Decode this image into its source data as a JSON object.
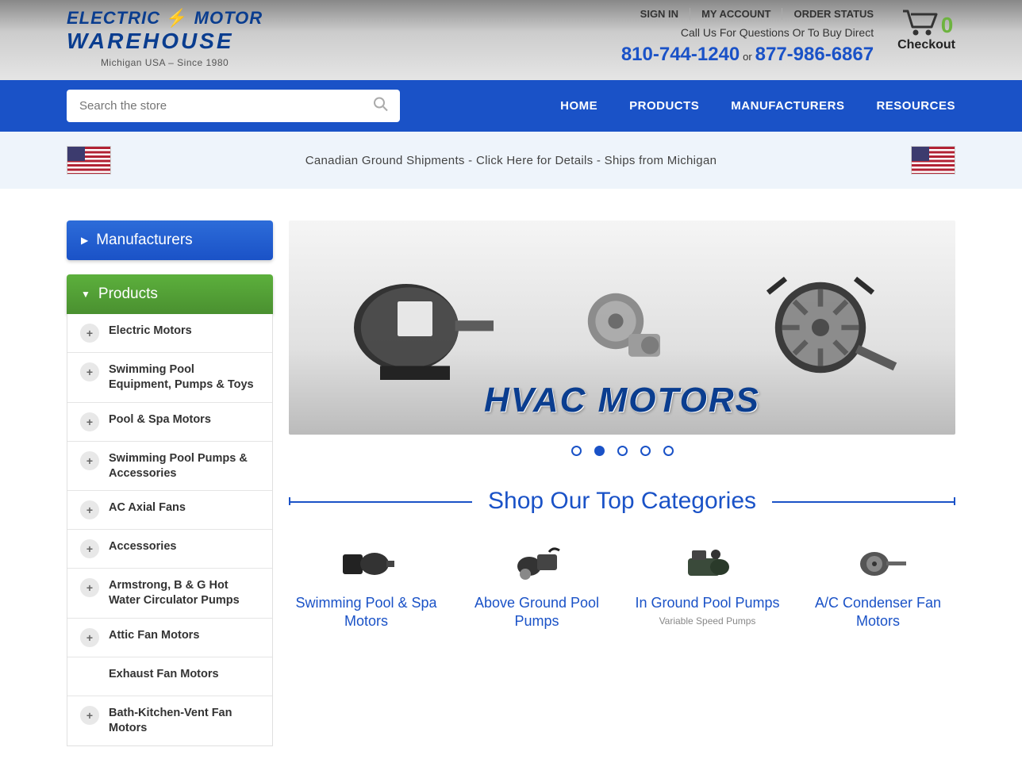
{
  "header": {
    "logo_line1_a": "ELECTRIC",
    "logo_line1_b": "MOTOR",
    "logo_line2": "WAREHOUSE",
    "tagline": "Michigan USA – Since 1980",
    "links": [
      "SIGN IN",
      "MY ACCOUNT",
      "ORDER STATUS"
    ],
    "call_text": "Call Us For Questions Or To Buy Direct",
    "phone1": "810-744-1240",
    "phone_or": "or",
    "phone2": "877-986-6867",
    "cart_count": "0",
    "cart_label": "Checkout"
  },
  "nav": {
    "search_placeholder": "Search the store",
    "links": [
      "HOME",
      "PRODUCTS",
      "MANUFACTURERS",
      "RESOURCES"
    ]
  },
  "banner": {
    "text": "Canadian Ground Shipments - Click Here for Details - Ships from Michigan"
  },
  "sidebar": {
    "manufacturers_label": "Manufacturers",
    "products_label": "Products",
    "categories": [
      {
        "label": "Electric Motors",
        "expandable": true
      },
      {
        "label": "Swimming Pool Equipment, Pumps & Toys",
        "expandable": true
      },
      {
        "label": "Pool & Spa Motors",
        "expandable": true
      },
      {
        "label": "Swimming Pool Pumps & Accessories",
        "expandable": true
      },
      {
        "label": "AC Axial Fans",
        "expandable": true
      },
      {
        "label": "Accessories",
        "expandable": true
      },
      {
        "label": "Armstrong, B & G Hot Water Circulator Pumps",
        "expandable": true
      },
      {
        "label": "Attic Fan Motors",
        "expandable": true
      },
      {
        "label": "Exhaust Fan Motors",
        "expandable": false
      },
      {
        "label": "Bath-Kitchen-Vent Fan Motors",
        "expandable": true
      }
    ]
  },
  "hero": {
    "title": "HVAC MOTORS",
    "active_dot": 1,
    "dot_count": 5
  },
  "section": {
    "title": "Shop Our Top Categories"
  },
  "top_categories": [
    {
      "title": "Swimming Pool & Spa Motors",
      "sub": ""
    },
    {
      "title": "Above Ground Pool Pumps",
      "sub": ""
    },
    {
      "title": "In Ground Pool Pumps",
      "sub": "Variable Speed Pumps"
    },
    {
      "title": "A/C Condenser Fan Motors",
      "sub": ""
    }
  ],
  "colors": {
    "primary_blue": "#1a52c7",
    "dark_blue": "#0a3d8f",
    "green": "#5cb03c",
    "light_bg": "#eef4fb"
  }
}
